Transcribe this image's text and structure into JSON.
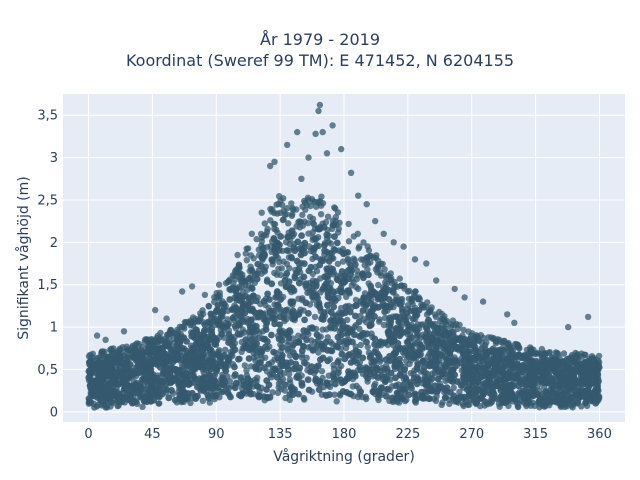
{
  "chart_data": {
    "type": "scatter",
    "title_line1": "År 1979 - 2019",
    "title_line2": "Koordinat (Sweref 99 TM): E 471452, N 6204155",
    "xlabel": "Vågriktning (grader)",
    "ylabel": "Signifikant våghöjd (m)",
    "xlim": [
      -18,
      378
    ],
    "ylim": [
      -0.12,
      3.75
    ],
    "x_ticks": [
      0,
      45,
      90,
      135,
      180,
      225,
      270,
      315,
      360
    ],
    "y_ticks": [
      0,
      0.5,
      1,
      1.5,
      2,
      2.5,
      3,
      3.5
    ],
    "y_tick_labels": [
      "0",
      "0,5",
      "1",
      "1,5",
      "2",
      "2,5",
      "3",
      "3,5"
    ],
    "grid": true,
    "colors": {
      "marker": "#34596e",
      "plot_bg": "#e5ecf6",
      "grid": "#ffffff"
    },
    "envelope": {
      "description_points_x": [
        0,
        30,
        60,
        80,
        100,
        120,
        135,
        150,
        165,
        180,
        200,
        225,
        250,
        270,
        290,
        315,
        340,
        360
      ],
      "upper_y": [
        0.7,
        0.8,
        1.0,
        1.2,
        1.6,
        2.2,
        2.6,
        2.5,
        2.6,
        2.3,
        1.9,
        1.5,
        1.15,
        0.95,
        0.85,
        0.75,
        0.7,
        0.7
      ],
      "lower_y": [
        0.05,
        0.05,
        0.08,
        0.1,
        0.12,
        0.12,
        0.12,
        0.12,
        0.12,
        0.12,
        0.12,
        0.1,
        0.08,
        0.06,
        0.05,
        0.05,
        0.05,
        0.05
      ]
    },
    "outliers": [
      {
        "x": 163,
        "y": 3.62
      },
      {
        "x": 162,
        "y": 3.55
      },
      {
        "x": 172,
        "y": 3.38
      },
      {
        "x": 165,
        "y": 3.3
      },
      {
        "x": 160,
        "y": 3.28
      },
      {
        "x": 147,
        "y": 3.3
      },
      {
        "x": 140,
        "y": 3.15
      },
      {
        "x": 178,
        "y": 3.1
      },
      {
        "x": 168,
        "y": 3.05
      },
      {
        "x": 155,
        "y": 3.0
      },
      {
        "x": 185,
        "y": 2.82
      },
      {
        "x": 131,
        "y": 2.95
      },
      {
        "x": 128,
        "y": 2.9
      },
      {
        "x": 150,
        "y": 2.75
      },
      {
        "x": 196,
        "y": 2.45
      },
      {
        "x": 208,
        "y": 2.1
      },
      {
        "x": 222,
        "y": 1.95
      },
      {
        "x": 238,
        "y": 1.75
      },
      {
        "x": 258,
        "y": 1.45
      },
      {
        "x": 278,
        "y": 1.3
      },
      {
        "x": 295,
        "y": 1.15
      },
      {
        "x": 300,
        "y": 1.05
      },
      {
        "x": 338,
        "y": 1.0
      },
      {
        "x": 352,
        "y": 1.12
      },
      {
        "x": 47,
        "y": 1.2
      },
      {
        "x": 73,
        "y": 1.48
      },
      {
        "x": 66,
        "y": 1.42
      },
      {
        "x": 82,
        "y": 1.38
      },
      {
        "x": 55,
        "y": 1.1
      },
      {
        "x": 92,
        "y": 1.5
      },
      {
        "x": 105,
        "y": 1.85
      },
      {
        "x": 115,
        "y": 2.1
      },
      {
        "x": 122,
        "y": 2.35
      },
      {
        "x": 6,
        "y": 0.9
      },
      {
        "x": 25,
        "y": 0.95
      },
      {
        "x": 12,
        "y": 0.85
      },
      {
        "x": 190,
        "y": 2.55
      },
      {
        "x": 202,
        "y": 2.25
      },
      {
        "x": 215,
        "y": 2.0
      },
      {
        "x": 230,
        "y": 1.8
      },
      {
        "x": 245,
        "y": 1.55
      },
      {
        "x": 265,
        "y": 1.35
      }
    ]
  }
}
